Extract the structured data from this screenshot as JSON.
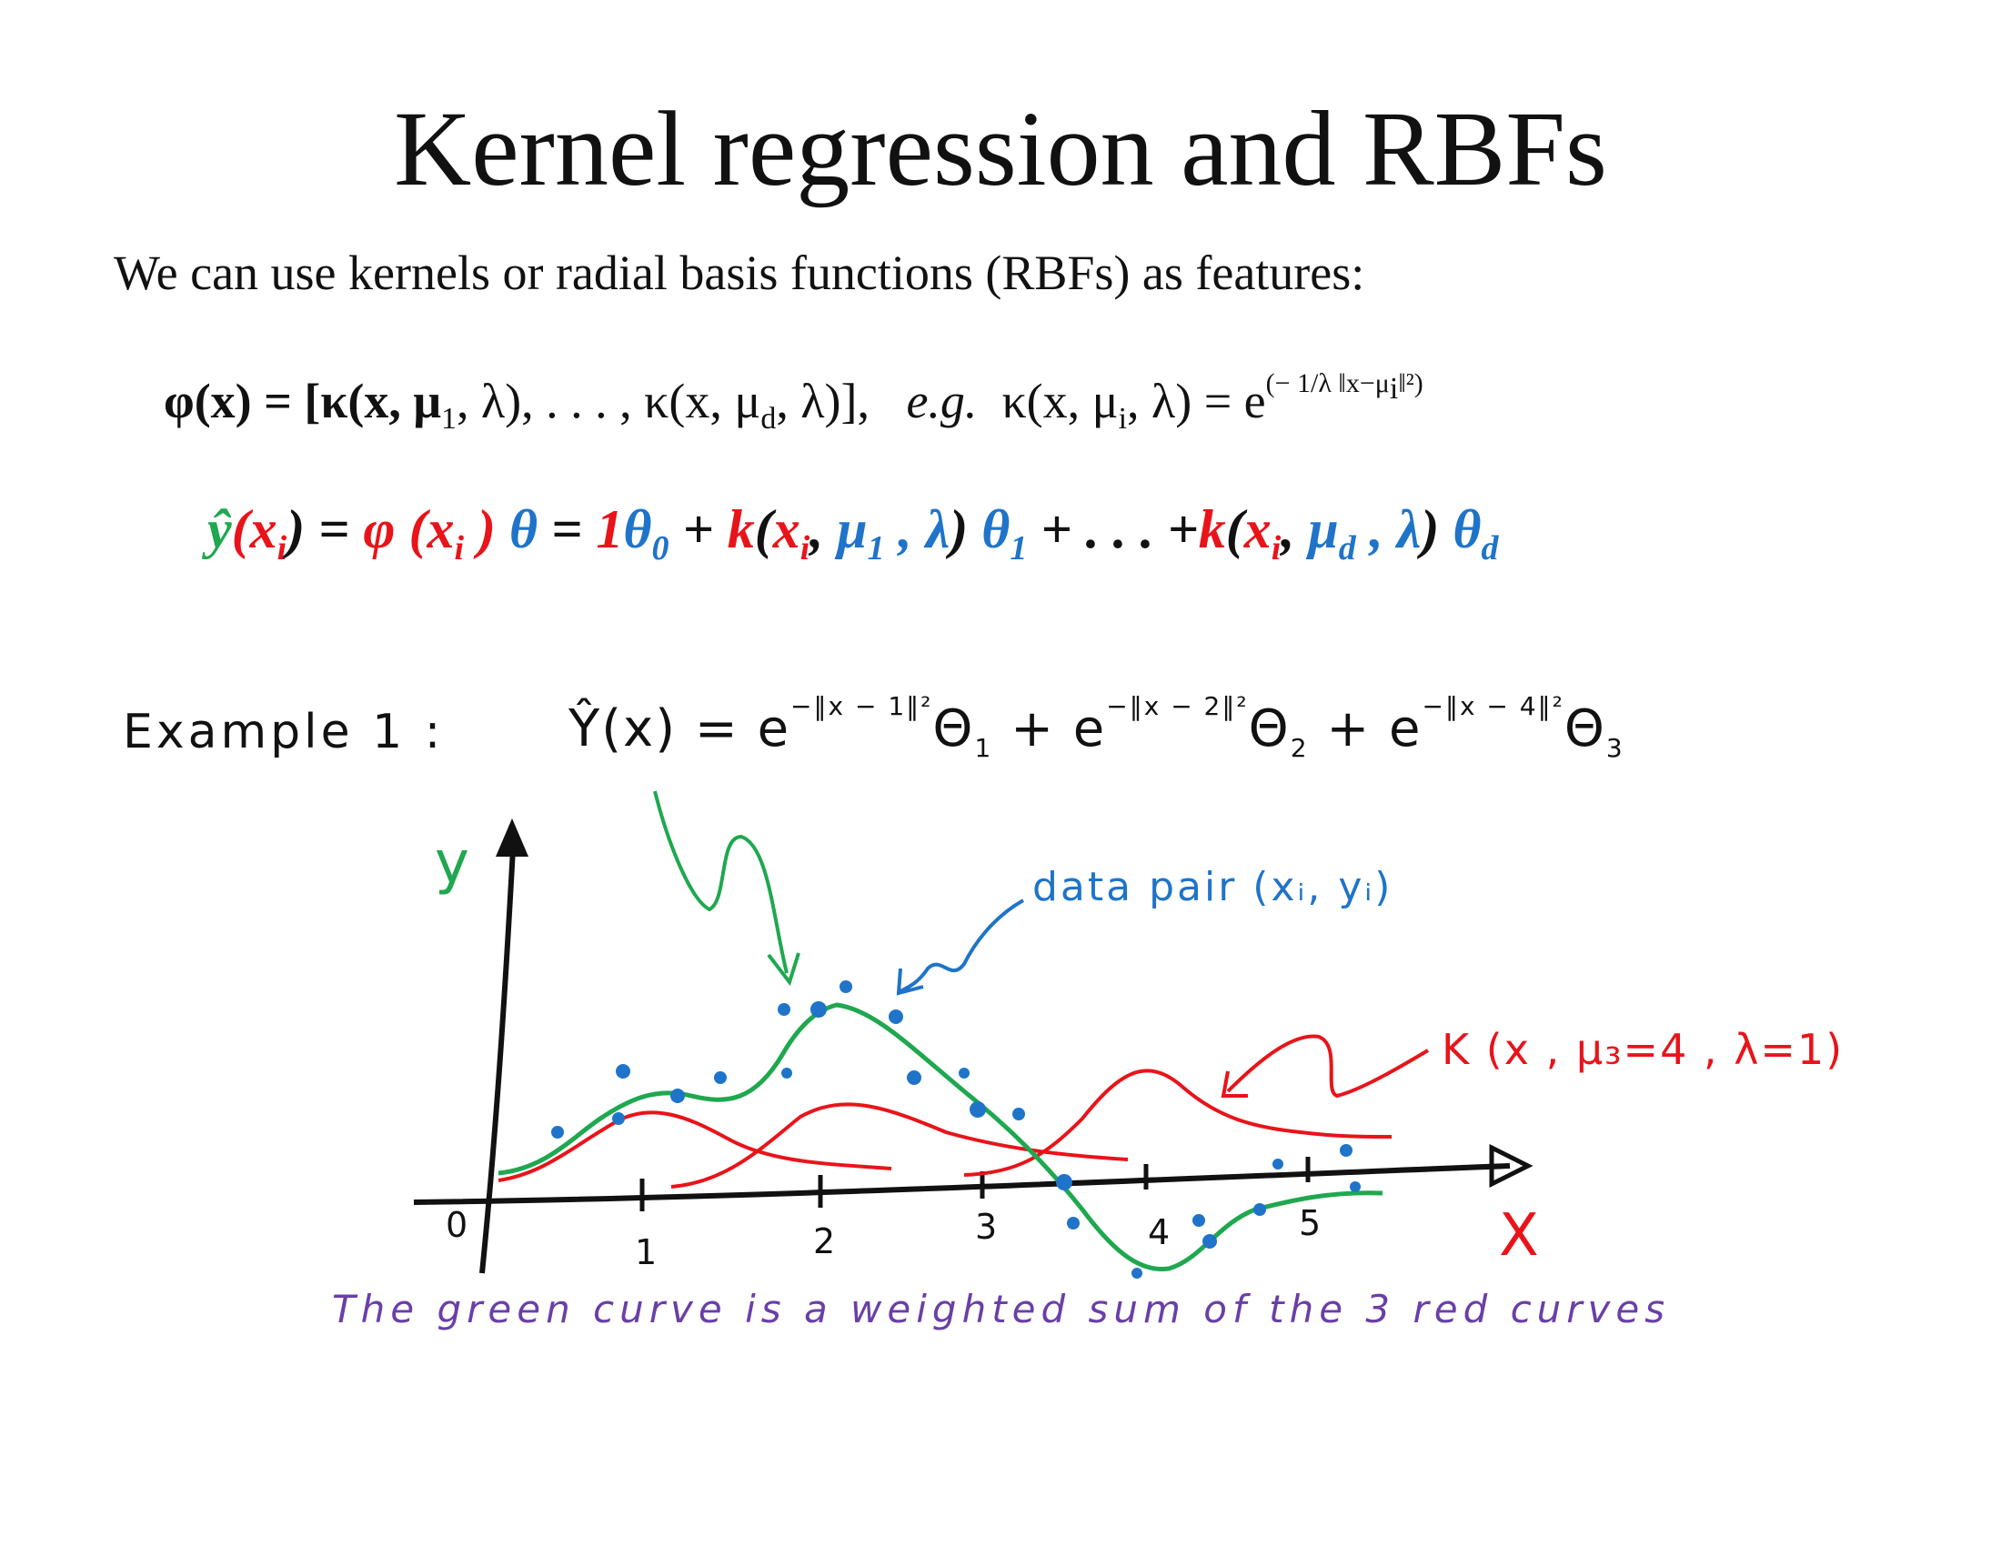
{
  "title": "Kernel regression and RBFs",
  "intro": "We can use kernels or radial basis functions (RBFs) as features:",
  "eq1": {
    "lhs": "φ(x) = [κ(x, μ",
    "mid1": "1",
    "mid2": ", λ), . . . , κ(x, μ",
    "mid3": "d",
    "mid4": ", λ)],",
    "eg": "e.g.",
    "rhs": "κ(x, μ",
    "rhs_sub": "i",
    "rhs2": ", λ) = e",
    "exp": "(− 1/λ ‖x−μ",
    "exp_sub": "i",
    "exp_end": "‖²)"
  },
  "eq2": {
    "yhat": "ŷ",
    "x1": "(x",
    "i": "i",
    "close1": ") = ",
    "phi": "φ (x",
    "close2": " )",
    "theta": " θ",
    "eq": " = ",
    "one": "1",
    "theta0": "θ",
    "zero": "0",
    "plus1": " + ",
    "k1": "k",
    "paren1": "(",
    "xi1": "x",
    "comma1": ", ",
    "mu1": "μ",
    "one_sub": "1",
    "lam1": " , λ",
    "close3": ") ",
    "theta1": "θ",
    "t1sub": "1",
    "dots": " + . . . +",
    "k2": "k",
    "paren2": "(",
    "xi2": "x",
    "comma2": ", ",
    "mud": "μ",
    "dsub": "d",
    "lam2": " , λ",
    "close4": ") ",
    "thetad": "θ",
    "tdsub": "d"
  },
  "example": {
    "label": "Example 1 :",
    "yhat": "Ŷ(x) =  e",
    "exp1": "−‖x − 1‖²",
    "theta1": "Θ",
    "t1": "1",
    "plus1": "  +  e",
    "exp2": "−‖x − 2‖²",
    "theta2": "Θ",
    "t2": "2",
    "plus2": " + e",
    "exp3": "−‖x − 4‖²",
    "theta3": "Θ",
    "t3": "3"
  },
  "plot": {
    "y_label": "y",
    "x_label": "X",
    "ticks": [
      "0",
      "1",
      "2",
      "3",
      "4",
      "5"
    ],
    "annotation_data": "data pair (xᵢ, yᵢ)",
    "annotation_kernel": "K (x , μ₃=4 , λ=1)",
    "colors": {
      "green": "#1fa84f",
      "red": "#e8141a",
      "blue": "#1f74c9",
      "purple": "#6a3fa8"
    }
  },
  "note": "The green curve is a weighted sum of the 3 red curves"
}
